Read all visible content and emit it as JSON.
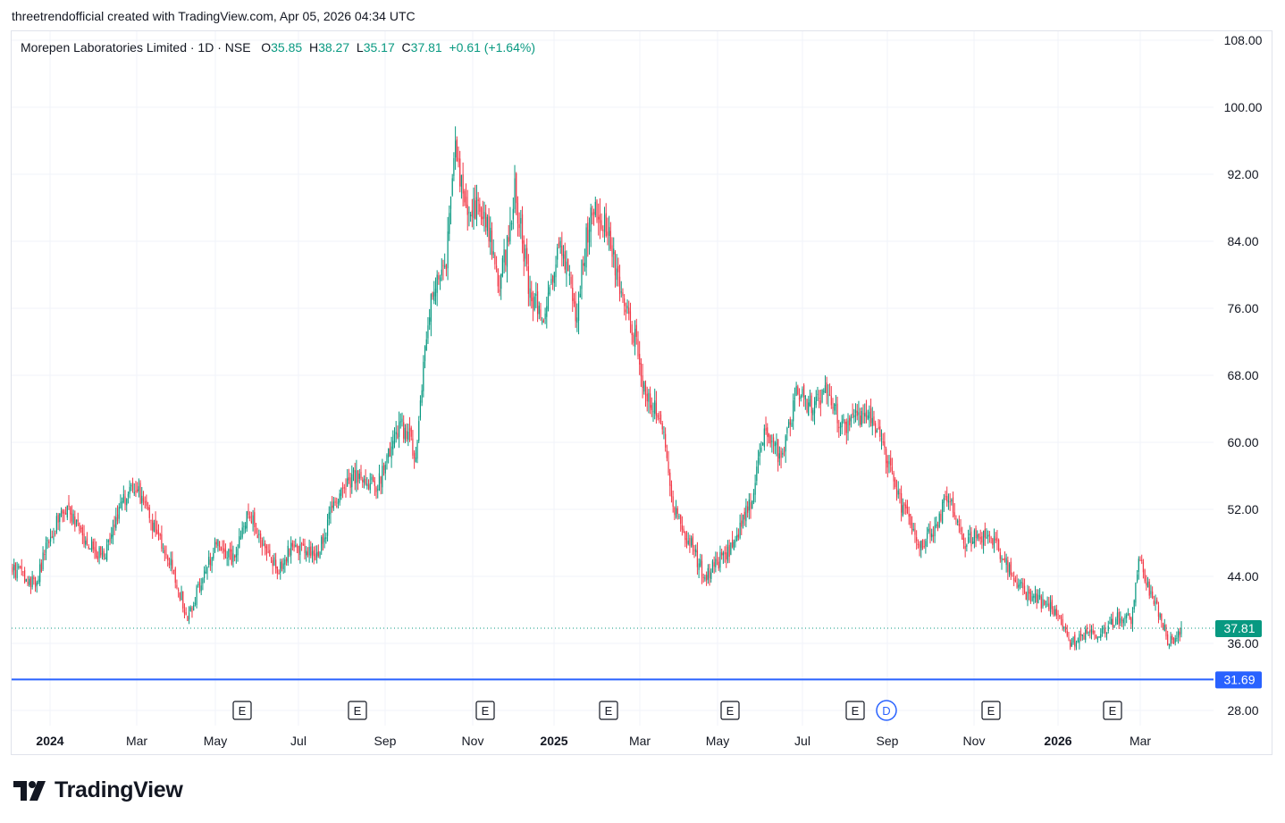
{
  "header": {
    "caption": "threetrendofficial created with TradingView.com, Apr 05, 2026 04:34 UTC"
  },
  "legend": {
    "symbol": "Morepen Laboratories Limited · 1D · NSE",
    "open_label": "O",
    "open": "35.85",
    "high_label": "H",
    "high": "38.27",
    "low_label": "L",
    "low": "35.17",
    "close_label": "C",
    "close": "37.81",
    "change": "+0.61 (+1.64%)"
  },
  "footer": {
    "brand": "TradingView"
  },
  "colors": {
    "up": "#089981",
    "down": "#f23645",
    "level_line": "#2962ff",
    "grid": "#f0f3fa",
    "text": "#131722"
  },
  "chart_data": {
    "type": "candlestick",
    "ylim": [
      26.0,
      110.0
    ],
    "y_ticks": [
      "108.00",
      "100.00",
      "92.00",
      "84.00",
      "76.00",
      "68.00",
      "60.00",
      "52.00",
      "44.00",
      "36.00",
      "28.00"
    ],
    "x_ticks": [
      {
        "label": "2024",
        "bold": true
      },
      {
        "label": "Mar",
        "bold": false
      },
      {
        "label": "May",
        "bold": false
      },
      {
        "label": "Jul",
        "bold": false
      },
      {
        "label": "Sep",
        "bold": false
      },
      {
        "label": "Nov",
        "bold": false
      },
      {
        "label": "2025",
        "bold": true
      },
      {
        "label": "Mar",
        "bold": false
      },
      {
        "label": "May",
        "bold": false
      },
      {
        "label": "Jul",
        "bold": false
      },
      {
        "label": "Sep",
        "bold": false
      },
      {
        "label": "Nov",
        "bold": false
      },
      {
        "label": "2026",
        "bold": true
      },
      {
        "label": "Mar",
        "bold": false
      }
    ],
    "last_price": {
      "value": 37.81,
      "label": "37.81"
    },
    "horizontal_line": {
      "value": 31.69,
      "label": "31.69"
    },
    "events": [
      {
        "label": "E",
        "kind": "earnings"
      },
      {
        "label": "E",
        "kind": "earnings"
      },
      {
        "label": "E",
        "kind": "earnings"
      },
      {
        "label": "E",
        "kind": "earnings"
      },
      {
        "label": "E",
        "kind": "earnings"
      },
      {
        "label": "E",
        "kind": "earnings"
      },
      {
        "label": "D",
        "kind": "dividend"
      },
      {
        "label": "E",
        "kind": "earnings"
      },
      {
        "label": "E",
        "kind": "earnings"
      }
    ],
    "price_path": [
      [
        0,
        45
      ],
      [
        15,
        43
      ],
      [
        25,
        49
      ],
      [
        35,
        52
      ],
      [
        45,
        49
      ],
      [
        60,
        46
      ],
      [
        70,
        52
      ],
      [
        80,
        55
      ],
      [
        95,
        49
      ],
      [
        105,
        45
      ],
      [
        115,
        39
      ],
      [
        125,
        44
      ],
      [
        135,
        48
      ],
      [
        145,
        46
      ],
      [
        155,
        52
      ],
      [
        165,
        47
      ],
      [
        175,
        45
      ],
      [
        185,
        48
      ],
      [
        200,
        46
      ],
      [
        210,
        52
      ],
      [
        225,
        56
      ],
      [
        240,
        55
      ],
      [
        255,
        62
      ],
      [
        265,
        59
      ],
      [
        275,
        78
      ],
      [
        285,
        82
      ],
      [
        290,
        95
      ],
      [
        300,
        88
      ],
      [
        310,
        88
      ],
      [
        320,
        78
      ],
      [
        330,
        90
      ],
      [
        340,
        78
      ],
      [
        350,
        75
      ],
      [
        360,
        84
      ],
      [
        370,
        75
      ],
      [
        380,
        88
      ],
      [
        390,
        86
      ],
      [
        400,
        77
      ],
      [
        410,
        72
      ],
      [
        415,
        66
      ],
      [
        425,
        64
      ],
      [
        435,
        52
      ],
      [
        445,
        48
      ],
      [
        455,
        44
      ],
      [
        465,
        46
      ],
      [
        475,
        48
      ],
      [
        485,
        53
      ],
      [
        495,
        62
      ],
      [
        505,
        58
      ],
      [
        515,
        66
      ],
      [
        525,
        64
      ],
      [
        535,
        66
      ],
      [
        545,
        62
      ],
      [
        555,
        63
      ],
      [
        565,
        63
      ],
      [
        575,
        58
      ],
      [
        585,
        52
      ],
      [
        595,
        48
      ],
      [
        605,
        49
      ],
      [
        615,
        54
      ],
      [
        625,
        48
      ],
      [
        635,
        49
      ],
      [
        645,
        48
      ],
      [
        655,
        45
      ],
      [
        665,
        42
      ],
      [
        675,
        41
      ],
      [
        685,
        40
      ],
      [
        695,
        36
      ],
      [
        705,
        37
      ],
      [
        715,
        37
      ],
      [
        725,
        39
      ],
      [
        735,
        39
      ],
      [
        740,
        46
      ],
      [
        750,
        41
      ],
      [
        760,
        36
      ],
      [
        768,
        37.81
      ]
    ]
  }
}
